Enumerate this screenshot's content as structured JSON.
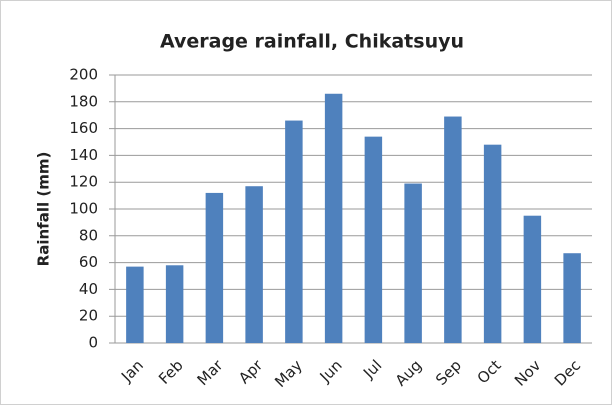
{
  "chart_data": {
    "type": "bar",
    "title": "Average rainfall, Chikatsuyu",
    "y_label": "Rainfall (mm)",
    "categories": [
      "Jan",
      "Feb",
      "Mar",
      "Apr",
      "May",
      "Jun",
      "Jul",
      "Aug",
      "Sep",
      "Oct",
      "Nov",
      "Dec"
    ],
    "values": [
      57,
      58,
      112,
      117,
      166,
      186,
      154,
      119,
      169,
      148,
      95,
      67
    ],
    "color": "#4f81bd",
    "ylim": [
      0,
      200
    ],
    "yticks": [
      0,
      20,
      40,
      60,
      80,
      100,
      120,
      140,
      160,
      180,
      200
    ],
    "grid": true
  }
}
